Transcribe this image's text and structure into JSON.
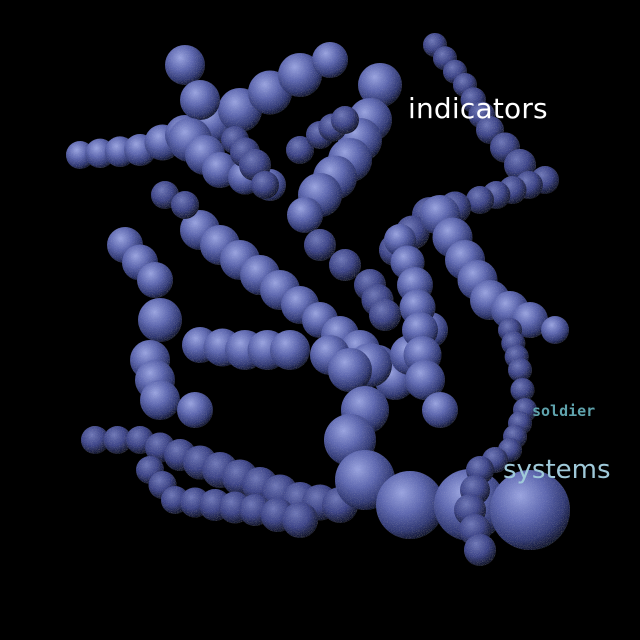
{
  "scene": {
    "description_colors": {
      "background": "#000000",
      "bead_light": "#8f9ad6",
      "bead_mid": "#4e58a0",
      "bead_dark": "#101635"
    }
  },
  "labels": {
    "indicators": {
      "text": "indicators",
      "color": "#ffffff"
    },
    "soldier": {
      "text": "soldier",
      "color": "#5fa3ad"
    },
    "systems": {
      "text": "systems",
      "color": "#9fc9d9"
    }
  }
}
